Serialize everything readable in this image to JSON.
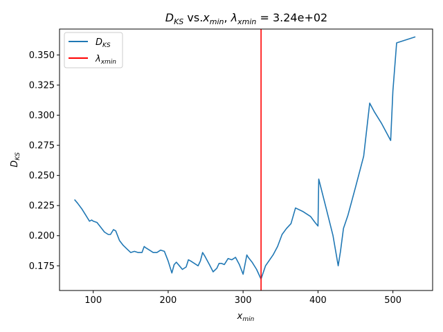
{
  "chart_data": {
    "type": "line",
    "title": {
      "d_symbol": "D",
      "d_sub": "KS",
      "vs": " vs.",
      "x_symbol": "x",
      "x_sub": "min",
      "sep": ", ",
      "lambda_symbol": "λ",
      "lambda_sub": "xmin",
      "value_text": " = 3.24e+02"
    },
    "xlabel": {
      "symbol": "x",
      "sub": "min"
    },
    "ylabel": {
      "symbol": "D",
      "sub": "KS"
    },
    "xlim": [
      55,
      553
    ],
    "ylim": [
      0.1545,
      0.3715
    ],
    "xticks": [
      100,
      200,
      300,
      400,
      500
    ],
    "xtick_labels": [
      "100",
      "200",
      "300",
      "400",
      "500"
    ],
    "yticks": [
      0.175,
      0.2,
      0.225,
      0.25,
      0.275,
      0.3,
      0.325,
      0.35
    ],
    "ytick_labels": [
      "0.175",
      "0.200",
      "0.225",
      "0.250",
      "0.275",
      "0.300",
      "0.325",
      "0.350"
    ],
    "grid": false,
    "legend_position": "top-left",
    "series": [
      {
        "name": {
          "symbol": "D",
          "sub": "KS"
        },
        "color": "#1f77b4",
        "x": [
          75,
          79,
          85,
          90,
          95,
          98,
          100,
          105,
          110,
          115,
          120,
          123,
          127,
          130,
          135,
          140,
          145,
          150,
          155,
          160,
          165,
          168,
          170,
          175,
          180,
          185,
          190,
          195,
          200,
          205,
          208,
          211,
          215,
          219,
          224,
          227,
          230,
          235,
          240,
          243,
          246,
          249,
          255,
          260,
          265,
          268,
          271,
          275,
          280,
          285,
          290,
          295,
          300,
          305,
          307,
          312,
          318,
          324,
          330,
          340,
          346,
          352,
          358,
          364,
          370,
          380,
          390,
          396,
          400,
          401,
          410,
          420,
          427,
          430,
          434,
          440,
          450,
          461,
          469,
          475,
          485,
          497,
          500,
          505,
          530
        ],
        "y": [
          0.23,
          0.227,
          0.222,
          0.217,
          0.212,
          0.213,
          0.212,
          0.211,
          0.207,
          0.203,
          0.201,
          0.201,
          0.205,
          0.204,
          0.196,
          0.192,
          0.189,
          0.186,
          0.187,
          0.186,
          0.186,
          0.191,
          0.19,
          0.188,
          0.186,
          0.186,
          0.188,
          0.187,
          0.179,
          0.169,
          0.176,
          0.178,
          0.175,
          0.172,
          0.174,
          0.18,
          0.179,
          0.177,
          0.175,
          0.179,
          0.186,
          0.183,
          0.176,
          0.17,
          0.173,
          0.177,
          0.177,
          0.176,
          0.181,
          0.18,
          0.182,
          0.176,
          0.168,
          0.184,
          0.182,
          0.178,
          0.172,
          0.164,
          0.175,
          0.184,
          0.191,
          0.201,
          0.206,
          0.21,
          0.223,
          0.22,
          0.216,
          0.211,
          0.208,
          0.247,
          0.225,
          0.2,
          0.175,
          0.187,
          0.206,
          0.217,
          0.24,
          0.266,
          0.31,
          0.303,
          0.293,
          0.279,
          0.32,
          0.36,
          0.365
        ]
      }
    ],
    "vline": {
      "x": 324,
      "color": "#ff0000",
      "name": {
        "symbol": "λ",
        "sub": "xmin"
      }
    }
  }
}
